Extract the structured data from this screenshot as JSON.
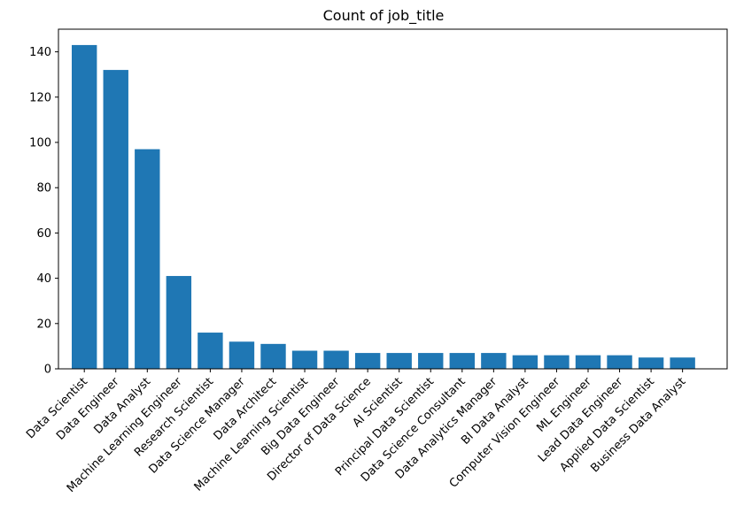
{
  "chart_data": {
    "type": "bar",
    "title": "Count of job_title",
    "xlabel": "",
    "ylabel": "",
    "ylim": [
      0,
      150
    ],
    "yticks": [
      "0",
      "20",
      "40",
      "60",
      "80",
      "100",
      "120",
      "140"
    ],
    "grid": false,
    "categories": [
      "Data Scientist",
      "Data Engineer",
      "Data Analyst",
      "Machine Learning Engineer",
      "Research Scientist",
      "Data Science Manager",
      "Data Architect",
      "Machine Learning Scientist",
      "Big Data Engineer",
      "Director of Data Science",
      "AI Scientist",
      "Principal Data Scientist",
      "Data Science Consultant",
      "Data Analytics Manager",
      "BI Data Analyst",
      "Computer Vision Engineer",
      "ML Engineer",
      "Lead Data Engineer",
      "Applied Data Scientist",
      "Business Data Analyst"
    ],
    "values": [
      143,
      132,
      97,
      41,
      16,
      12,
      11,
      8,
      8,
      7,
      7,
      7,
      7,
      7,
      6,
      6,
      6,
      6,
      5,
      5
    ],
    "bar_color": "#1f77b4"
  }
}
